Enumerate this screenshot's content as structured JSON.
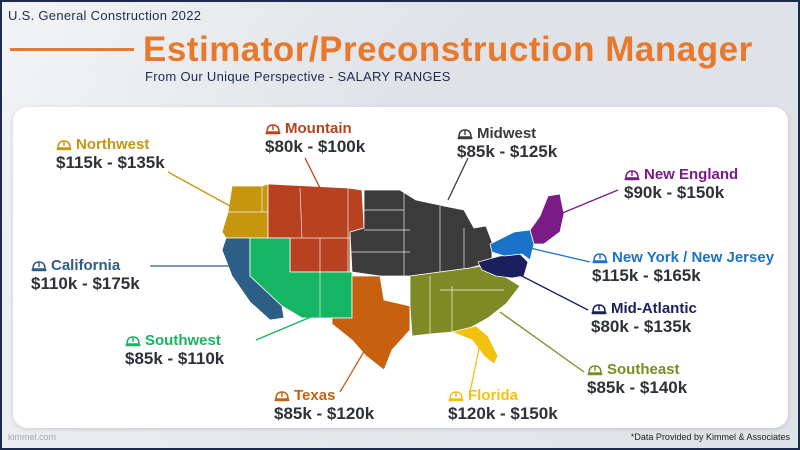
{
  "header": {
    "top_label": "U.S. General Construction 2022",
    "title": "Estimator/Preconstruction Manager",
    "subtitle": "From Our Unique Perspective - SALARY RANGES"
  },
  "regions": [
    {
      "name": "Northwest",
      "range": "$115k - $135k",
      "color": "#c7960f",
      "icon": "hard-hat-icon"
    },
    {
      "name": "Mountain",
      "range": "$80k - $100k",
      "color": "#b8411f",
      "icon": "hard-hat-icon"
    },
    {
      "name": "Midwest",
      "range": "$85k - $125k",
      "color": "#3b3b3b",
      "icon": "hard-hat-icon"
    },
    {
      "name": "New England",
      "range": "$90k - $150k",
      "color": "#7b1b86",
      "icon": "hard-hat-icon"
    },
    {
      "name": "California",
      "range": "$110k - $175k",
      "color": "#2c5e86",
      "icon": "hard-hat-icon"
    },
    {
      "name": "New York / New Jersey",
      "range": "$115k - $165k",
      "color": "#1a73c9",
      "icon": "hard-hat-icon"
    },
    {
      "name": "Mid-Atlantic",
      "range": "$80k - $135k",
      "color": "#1b1f5e",
      "icon": "hard-hat-icon"
    },
    {
      "name": "Southwest",
      "range": "$85k - $110k",
      "color": "#16b563",
      "icon": "hard-hat-icon"
    },
    {
      "name": "Texas",
      "range": "$85k - $120k",
      "color": "#c8610f",
      "icon": "hard-hat-icon"
    },
    {
      "name": "Florida",
      "range": "$120k - $150k",
      "color": "#f3c10f",
      "icon": "hard-hat-icon"
    },
    {
      "name": "Southeast",
      "range": "$85k - $140k",
      "color": "#7e8a25",
      "icon": "hard-hat-icon"
    }
  ],
  "footer": {
    "credit": "*Data Provided by Kimmel & Associates",
    "watermark": "kimmel.com"
  }
}
